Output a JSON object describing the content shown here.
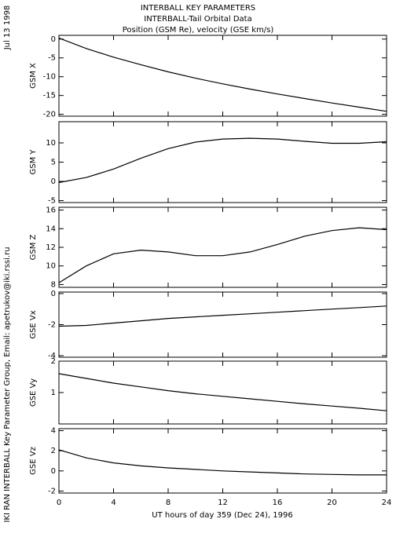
{
  "title_lines": [
    "INTERBALL KEY PARAMETERS",
    "INTERBALL-Tail Orbital Data",
    "Position (GSM Re), velocity (GSE km/s)"
  ],
  "date": "Jul 13 1998",
  "credit": "IKI RAN INTERBALL Key Parameter Group, Email: apetrukov@iki.rssi.ru",
  "xlabel": "UT hours of day 359 (Dec 24), 1996",
  "chart_data": [
    {
      "type": "line",
      "ylabel": "GSM X",
      "x": [
        0,
        2,
        4,
        6,
        8,
        10,
        12,
        14,
        16,
        18,
        20,
        22,
        24
      ],
      "xlim": [
        0,
        24
      ],
      "series": [
        {
          "color": "#000000",
          "values": [
            0.3,
            -2.5,
            -4.8,
            -6.8,
            -8.7,
            -10.4,
            -11.9,
            -13.3,
            -14.6,
            -15.8,
            -17,
            -18.1,
            -19.2
          ]
        }
      ],
      "ylim": [
        -20.5,
        1
      ],
      "yticks": [
        0,
        -5,
        -10,
        -15,
        -20
      ]
    },
    {
      "type": "line",
      "ylabel": "GSM Y",
      "x": [
        0,
        2,
        4,
        6,
        8,
        10,
        12,
        14,
        16,
        18,
        20,
        22,
        24
      ],
      "xlim": [
        0,
        24
      ],
      "series": [
        {
          "color": "#000000",
          "values": [
            -0.3,
            1,
            3.2,
            6,
            8.5,
            10.2,
            11,
            11.2,
            11,
            10.4,
            9.9,
            9.9,
            10.3
          ]
        }
      ],
      "ylim": [
        -5.5,
        15.5
      ],
      "yticks": [
        10,
        5,
        0,
        -5
      ]
    },
    {
      "type": "line",
      "ylabel": "GSM Z",
      "x": [
        0,
        2,
        4,
        6,
        8,
        10,
        12,
        14,
        16,
        18,
        20,
        22,
        24
      ],
      "xlim": [
        0,
        24
      ],
      "series": [
        {
          "color": "#000000",
          "values": [
            8.2,
            10,
            11.3,
            11.7,
            11.5,
            11.1,
            11.1,
            11.5,
            12.3,
            13.2,
            13.8,
            14.1,
            13.9
          ]
        }
      ],
      "ylim": [
        7.7,
        16.3
      ],
      "yticks": [
        16,
        14,
        12,
        10,
        8
      ]
    },
    {
      "type": "line",
      "ylabel": "GSE Vx",
      "x": [
        0,
        2,
        4,
        6,
        8,
        10,
        12,
        14,
        16,
        18,
        20,
        22,
        24
      ],
      "xlim": [
        0,
        24
      ],
      "series": [
        {
          "color": "#000000",
          "values": [
            -2.1,
            -2.05,
            -1.9,
            -1.75,
            -1.6,
            -1.5,
            -1.4,
            -1.3,
            -1.2,
            -1.1,
            -1,
            -0.9,
            -0.8
          ]
        }
      ],
      "ylim": [
        -4.1,
        0.1
      ],
      "yticks": [
        0,
        -2,
        -4
      ]
    },
    {
      "type": "line",
      "ylabel": "GSE Vy",
      "x": [
        0,
        2,
        4,
        6,
        8,
        10,
        12,
        14,
        16,
        18,
        20,
        22,
        24
      ],
      "xlim": [
        0,
        24
      ],
      "series": [
        {
          "color": "#000000",
          "values": [
            1.6,
            1.45,
            1.3,
            1.18,
            1.06,
            0.96,
            0.88,
            0.8,
            0.72,
            0.64,
            0.57,
            0.5,
            0.42
          ]
        }
      ],
      "ylim": [
        0,
        2
      ],
      "yticks": [
        2,
        1
      ]
    },
    {
      "type": "line",
      "ylabel": "GSE Vz",
      "x": [
        0,
        2,
        4,
        6,
        8,
        10,
        12,
        14,
        16,
        18,
        20,
        22,
        24
      ],
      "xlim": [
        0,
        24
      ],
      "series": [
        {
          "color": "#000000",
          "values": [
            2.1,
            1.3,
            0.8,
            0.5,
            0.3,
            0.15,
            0,
            -0.1,
            -0.2,
            -0.3,
            -0.35,
            -0.4,
            -0.4
          ]
        }
      ],
      "ylim": [
        -2.2,
        4.2
      ],
      "yticks": [
        4,
        2,
        0,
        -2
      ],
      "xticks": [
        0,
        4,
        8,
        12,
        16,
        20,
        24
      ]
    }
  ]
}
